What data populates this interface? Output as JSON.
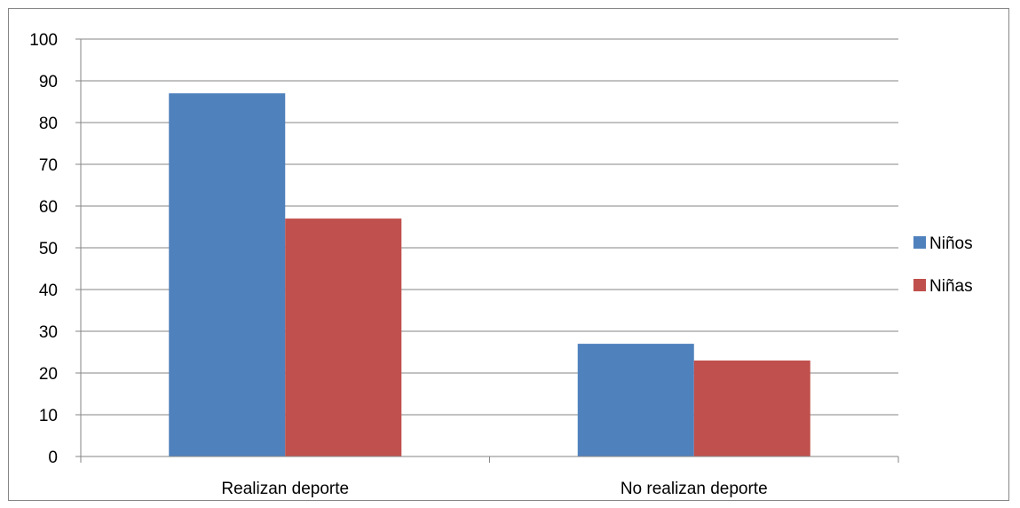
{
  "chart_data": {
    "type": "bar",
    "title": "",
    "xlabel": "",
    "ylabel": "",
    "categories": [
      "Realizan deporte",
      "No realizan deporte"
    ],
    "series": [
      {
        "name": "Niños",
        "values": [
          87,
          27
        ],
        "color": "#4F81BD"
      },
      {
        "name": "Niñas",
        "values": [
          57,
          23
        ],
        "color": "#C0504D"
      }
    ],
    "ylim": [
      0,
      100
    ],
    "yticks": [
      0,
      10,
      20,
      30,
      40,
      50,
      60,
      70,
      80,
      90,
      100
    ],
    "grid": true,
    "legend_position": "right"
  }
}
